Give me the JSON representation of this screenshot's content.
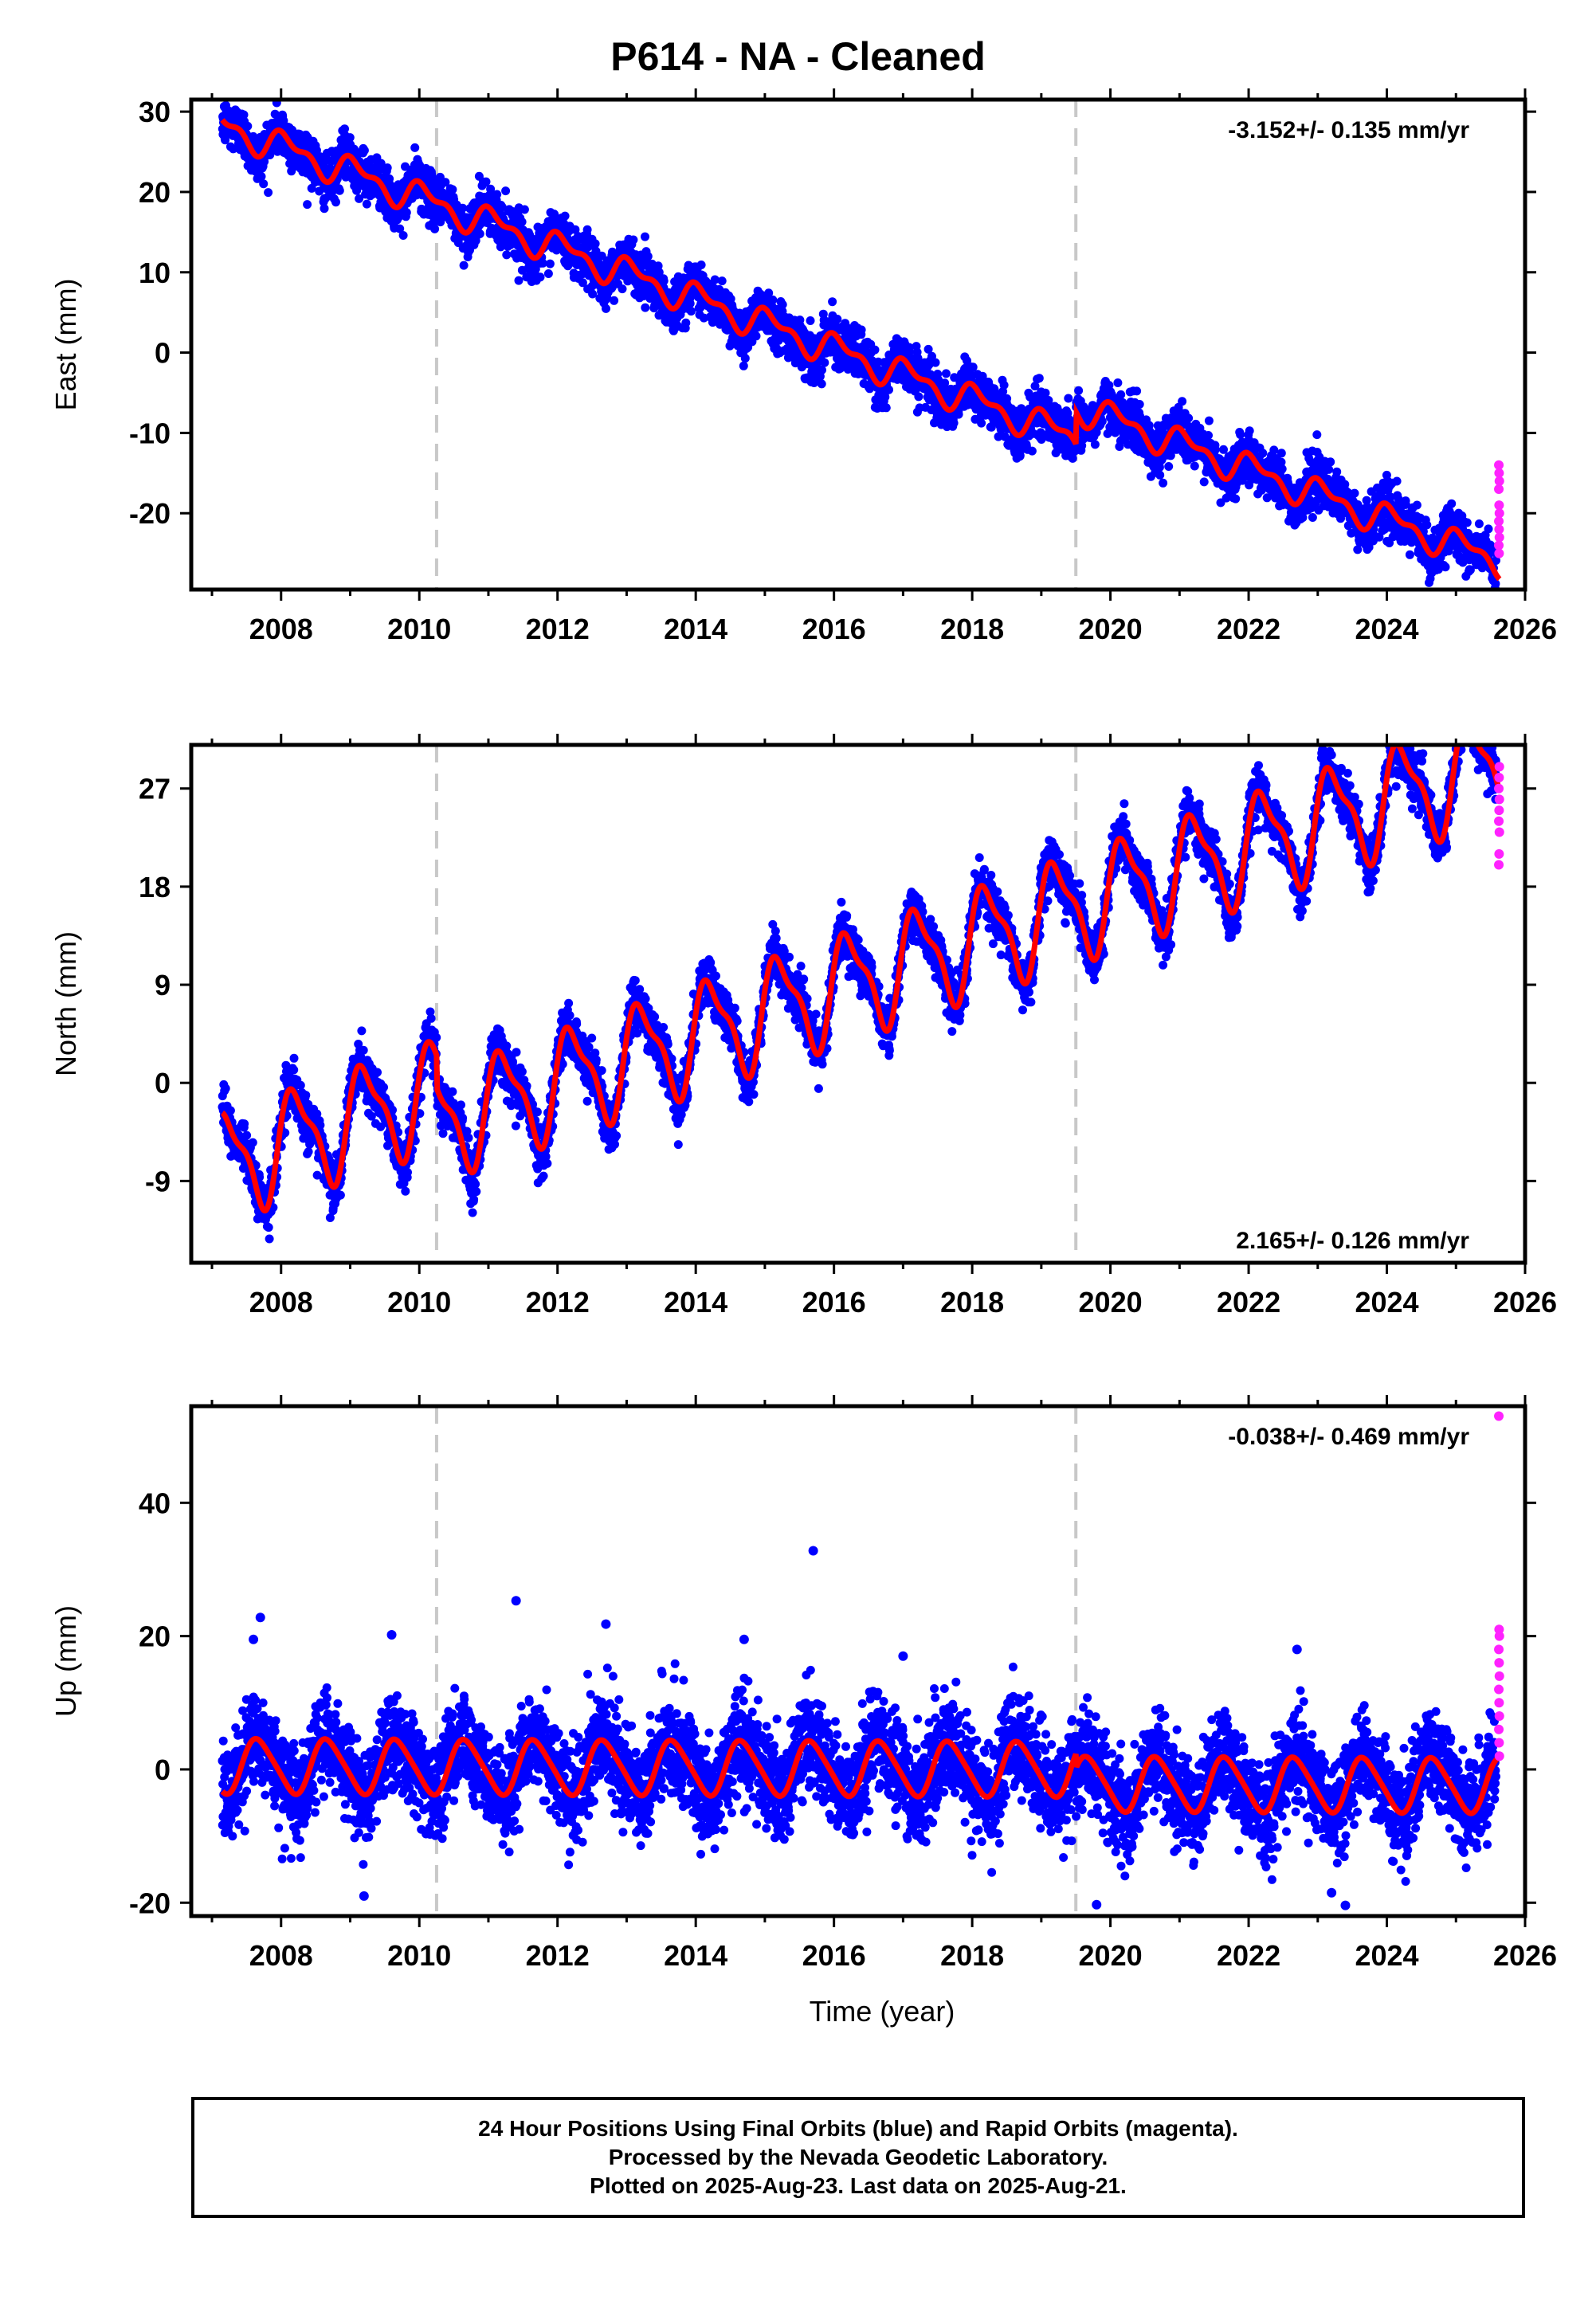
{
  "title": "P614  - NA - Cleaned",
  "colors": {
    "final": "#0000ff",
    "rapid": "#ff22ff",
    "model": "#ff0000",
    "events": "#c8c8c8",
    "axes": "#000000"
  },
  "chart_data": [
    {
      "type": "scatter",
      "component": "east",
      "ylabel": "East (mm)",
      "xlabel": "",
      "xlim": [
        2006.7,
        2026.0
      ],
      "ylim": [
        -29.5,
        31.5
      ],
      "xticks": [
        2008,
        2010,
        2012,
        2014,
        2016,
        2018,
        2020,
        2022,
        2024,
        2026
      ],
      "yticks": [
        -20,
        -10,
        0,
        10,
        20,
        30
      ],
      "rate_text": "-3.152+/- 0.135 mm/yr",
      "rate_position": "top-right",
      "event_lines": [
        2010.25,
        2019.5
      ],
      "start_year": 2007.15,
      "end_year": 2025.63,
      "model": {
        "offset": 28.3,
        "rate": -3.152,
        "annual_amp": 1.6,
        "annual_phase": 1.0,
        "semi_amp": 0.9,
        "semi_phase": 2.4,
        "steps": [
          {
            "year": 2019.5,
            "size": 4.0
          }
        ]
      },
      "scatter_sd": 1.5,
      "rapid_values": [
        -14,
        -15,
        -16,
        -17,
        -19,
        -20,
        -21,
        -22,
        -23,
        -24,
        -25
      ],
      "series": [
        {
          "name": "Final Orbits (blue)"
        },
        {
          "name": "Rapid Orbits (magenta)"
        }
      ]
    },
    {
      "type": "scatter",
      "component": "north",
      "ylabel": "North (mm)",
      "xlabel": "",
      "xlim": [
        2006.7,
        2026.0
      ],
      "ylim": [
        -16.5,
        31.0
      ],
      "xticks": [
        2008,
        2010,
        2012,
        2014,
        2016,
        2018,
        2020,
        2022,
        2024,
        2026
      ],
      "yticks": [
        -9,
        0,
        9,
        18,
        27
      ],
      "rate_text": "2.165+/- 0.126 mm/yr",
      "rate_position": "bottom-right",
      "event_lines": [
        2010.25,
        2019.5
      ],
      "start_year": 2007.15,
      "end_year": 2025.63,
      "model": {
        "offset": -7.5,
        "rate": 2.165,
        "annual_amp": 4.5,
        "annual_phase": 0.2,
        "semi_amp": 1.5,
        "semi_phase": 0.8,
        "steps": [
          {
            "year": 2010.25,
            "size": -3.0
          }
        ]
      },
      "scatter_sd": 1.1,
      "rapid_values": [
        20,
        21,
        23,
        24,
        25,
        26,
        27,
        28,
        29
      ],
      "series": [
        {
          "name": "Final Orbits (blue)"
        },
        {
          "name": "Rapid Orbits (magenta)"
        }
      ]
    },
    {
      "type": "scatter",
      "component": "up",
      "ylabel": "Up (mm)",
      "xlabel": "Time (year)",
      "xlim": [
        2006.7,
        2026.0
      ],
      "ylim": [
        -22.0,
        54.5
      ],
      "xticks": [
        2008,
        2010,
        2012,
        2014,
        2016,
        2018,
        2020,
        2022,
        2024,
        2026
      ],
      "yticks": [
        -20,
        0,
        20,
        40
      ],
      "rate_text": "-0.038+/- 0.469 mm/yr",
      "rate_position": "top-right",
      "event_lines": [
        2010.25,
        2019.5
      ],
      "start_year": 2007.15,
      "end_year": 2025.63,
      "model": {
        "offset": 0.5,
        "rate": -0.038,
        "annual_amp": 4.0,
        "annual_phase": 3.6,
        "semi_amp": 0.6,
        "semi_phase": 1.0,
        "steps": [
          {
            "year": 2019.5,
            "size": -2.2
          }
        ]
      },
      "scatter_sd": 3.6,
      "outliers": [
        [
          2007.7,
          22.8
        ],
        [
          2007.6,
          19.5
        ],
        [
          2009.6,
          20.2
        ],
        [
          2011.4,
          25.3
        ],
        [
          2012.7,
          21.8
        ],
        [
          2015.7,
          32.8
        ],
        [
          2009.2,
          -19.0
        ],
        [
          2019.8,
          -20.3
        ],
        [
          2023.2,
          -18.5
        ],
        [
          2023.4,
          -20.4
        ],
        [
          2014.7,
          19.5
        ],
        [
          2017.0,
          17.0
        ],
        [
          2022.7,
          18.0
        ]
      ],
      "rapid_values": [
        53,
        21,
        20,
        18,
        16,
        14,
        12,
        10,
        8,
        6,
        4,
        2
      ],
      "series": [
        {
          "name": "Final Orbits (blue)"
        },
        {
          "name": "Rapid Orbits (magenta)"
        }
      ]
    }
  ],
  "footer": {
    "line1": "24 Hour Positions Using Final Orbits (blue) and Rapid Orbits (magenta).",
    "line2": "Processed by the Nevada Geodetic Laboratory.",
    "line3": "Plotted on 2025-Aug-23. Last data on 2025-Aug-21."
  }
}
